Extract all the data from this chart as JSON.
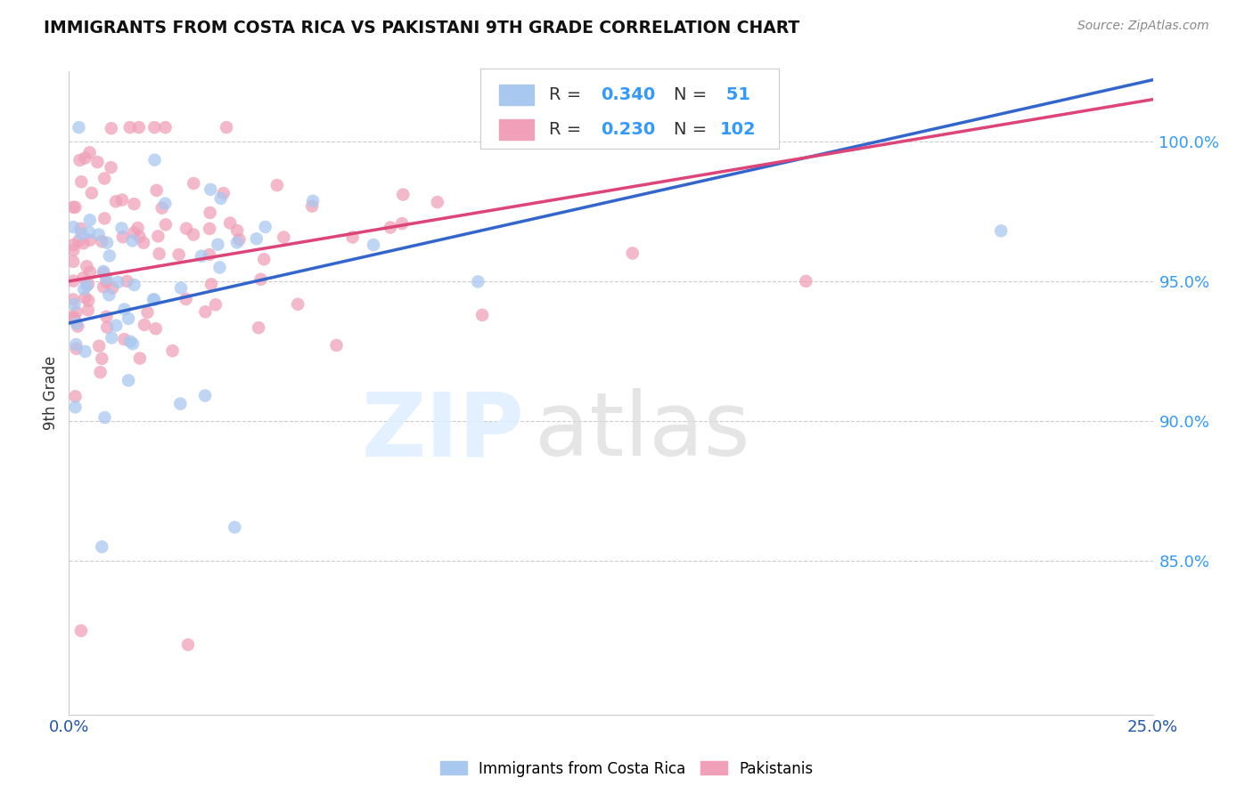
{
  "title": "IMMIGRANTS FROM COSTA RICA VS PAKISTANI 9TH GRADE CORRELATION CHART",
  "source": "Source: ZipAtlas.com",
  "ylabel": "9th Grade",
  "legend_label1": "Immigrants from Costa Rica",
  "legend_label2": "Pakistanis",
  "r1": 0.34,
  "n1": 51,
  "r2": 0.23,
  "n2": 102,
  "color_blue": "#a8c8f0",
  "color_pink": "#f0a0b8",
  "color_blue_dark": "#3366cc",
  "color_pink_dark": "#dd4477",
  "xmin": 0.0,
  "xmax": 0.25,
  "ymin": 0.795,
  "ymax": 1.025,
  "yticks": [
    0.85,
    0.9,
    0.95,
    1.0
  ],
  "ytick_labels": [
    "85.0%",
    "90.0%",
    "95.0%",
    "100.0%"
  ],
  "xtick_labels_left": "0.0%",
  "xtick_labels_right": "25.0%",
  "blue_line_x0": 0.0,
  "blue_line_y0": 0.935,
  "blue_line_x1": 0.25,
  "blue_line_y1": 1.022,
  "pink_line_x0": 0.0,
  "pink_line_y0": 0.95,
  "pink_line_x1": 0.25,
  "pink_line_y1": 1.015,
  "seed_blue": 77,
  "seed_pink": 42
}
